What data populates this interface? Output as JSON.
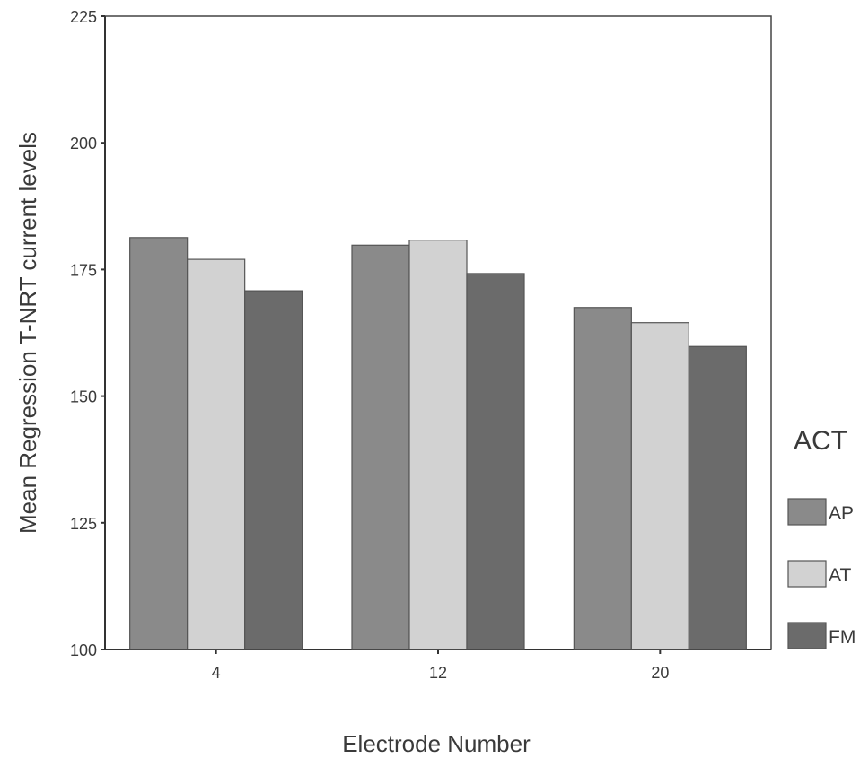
{
  "chart_data": {
    "type": "bar",
    "xlabel": "Electrode Number",
    "ylabel": "Mean Regression T-NRT current levels",
    "categories": [
      "4",
      "12",
      "20"
    ],
    "ylim": [
      100,
      225
    ],
    "yticks": [
      100,
      125,
      150,
      175,
      200,
      225
    ],
    "grid": false,
    "legend_title": "ACT",
    "legend_position": "right",
    "series": [
      {
        "name": "AP",
        "color": "#8a8a8a",
        "values": [
          181.3,
          179.8,
          167.5
        ]
      },
      {
        "name": "AT",
        "color": "#d2d2d2",
        "values": [
          177.0,
          180.8,
          164.5
        ]
      },
      {
        "name": "FM",
        "color": "#6b6b6b",
        "values": [
          170.8,
          174.2,
          159.8
        ]
      }
    ]
  }
}
